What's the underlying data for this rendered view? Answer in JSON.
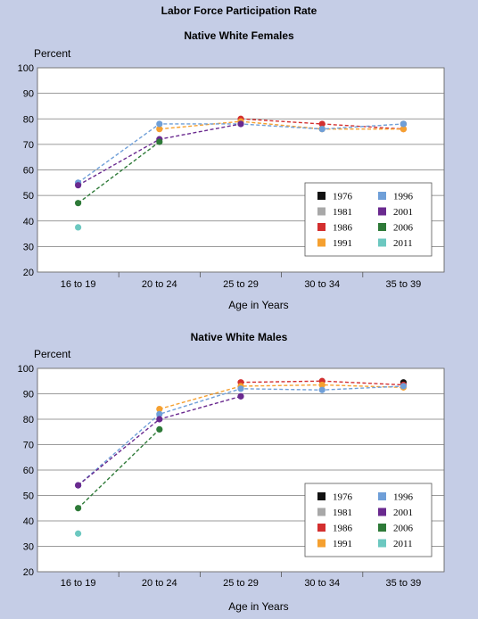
{
  "main_title": "Labor Force Participation Rate",
  "chart_data": [
    {
      "type": "line",
      "title": "Native White Females",
      "ylabel": "Percent",
      "xlabel": "Age in Years",
      "categories": [
        "16 to 19",
        "20 to 24",
        "25 to 29",
        "30 to 34",
        "35 to 39"
      ],
      "ylim": [
        20,
        100
      ],
      "yticks": [
        20,
        30,
        40,
        50,
        60,
        70,
        80,
        90,
        100
      ],
      "grid": true,
      "legend_position": "bottom-right",
      "series": [
        {
          "name": "1976",
          "color": "#111111",
          "values": [
            null,
            null,
            null,
            null,
            78
          ]
        },
        {
          "name": "1981",
          "color": "#a8a8a8",
          "values": [
            null,
            null,
            null,
            76,
            null
          ]
        },
        {
          "name": "1986",
          "color": "#d32f2f",
          "values": [
            null,
            null,
            80,
            78,
            76
          ]
        },
        {
          "name": "1991",
          "color": "#f5a030",
          "values": [
            null,
            76,
            79,
            76,
            76
          ]
        },
        {
          "name": "1996",
          "color": "#6f9fd8",
          "values": [
            55,
            78,
            78,
            76,
            78
          ]
        },
        {
          "name": "2001",
          "color": "#6a2a8f",
          "values": [
            54,
            72,
            78,
            null,
            null
          ]
        },
        {
          "name": "2006",
          "color": "#2e7a38",
          "values": [
            47,
            71,
            null,
            null,
            null
          ]
        },
        {
          "name": "2011",
          "color": "#6cc8c0",
          "values": [
            37.5,
            null,
            null,
            null,
            null
          ]
        }
      ]
    },
    {
      "type": "line",
      "title": "Native White Males",
      "ylabel": "Percent",
      "xlabel": "Age in Years",
      "categories": [
        "16 to 19",
        "20 to 24",
        "25 to 29",
        "30 to 34",
        "35 to 39"
      ],
      "ylim": [
        20,
        100
      ],
      "yticks": [
        20,
        30,
        40,
        50,
        60,
        70,
        80,
        90,
        100
      ],
      "grid": true,
      "legend_position": "bottom-right",
      "series": [
        {
          "name": "1976",
          "color": "#111111",
          "values": [
            null,
            null,
            null,
            null,
            94.5
          ]
        },
        {
          "name": "1981",
          "color": "#a8a8a8",
          "values": [
            null,
            null,
            null,
            95,
            null
          ]
        },
        {
          "name": "1986",
          "color": "#d32f2f",
          "values": [
            null,
            null,
            94.5,
            95,
            93.5
          ]
        },
        {
          "name": "1991",
          "color": "#f5a030",
          "values": [
            null,
            84,
            93,
            93.5,
            92.5
          ]
        },
        {
          "name": "1996",
          "color": "#6f9fd8",
          "values": [
            54,
            82,
            92,
            91.5,
            93
          ]
        },
        {
          "name": "2001",
          "color": "#6a2a8f",
          "values": [
            54,
            80,
            89,
            null,
            null
          ]
        },
        {
          "name": "2006",
          "color": "#2e7a38",
          "values": [
            45,
            76,
            null,
            null,
            null
          ]
        },
        {
          "name": "2011",
          "color": "#6cc8c0",
          "values": [
            35,
            null,
            null,
            null,
            null
          ]
        }
      ]
    }
  ]
}
